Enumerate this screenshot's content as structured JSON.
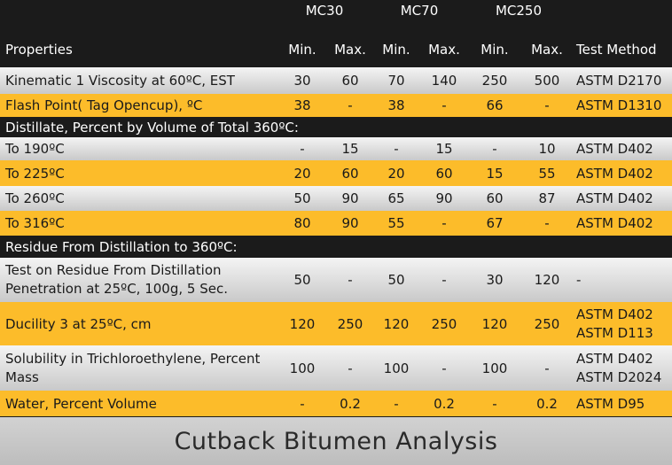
{
  "groups": [
    "MC30",
    "MC70",
    "MC250"
  ],
  "header": [
    "Properties",
    "Min.",
    "Max.",
    "Min.",
    "Max.",
    "Min.",
    "Max.",
    "Test Method"
  ],
  "rows": [
    {
      "style": "gray",
      "label": [
        "Kinematic 1 Viscosity at 60ºC, EST"
      ],
      "values": [
        "30",
        "60",
        "70",
        "140",
        "250",
        "500"
      ],
      "method": [
        "ASTM D2170"
      ]
    },
    {
      "style": "yellow",
      "label": [
        "Flash Point( Tag Opencup), ºC"
      ],
      "values": [
        "38",
        "-",
        "38",
        "-",
        "66",
        "-"
      ],
      "method": [
        "ASTM D1310"
      ]
    },
    {
      "style": "dark",
      "label": [
        "Distillate, Percent by Volume of Total 360ºC:"
      ]
    },
    {
      "style": "gray",
      "label": [
        "To 190ºC"
      ],
      "values": [
        "-",
        "15",
        "-",
        "15",
        "-",
        "10"
      ],
      "method": [
        "ASTM D402"
      ]
    },
    {
      "style": "yellow",
      "label": [
        "To 225ºC"
      ],
      "values": [
        "20",
        "60",
        "20",
        "60",
        "15",
        "55"
      ],
      "method": [
        "ASTM D402"
      ]
    },
    {
      "style": "gray",
      "label": [
        "To 260ºC"
      ],
      "values": [
        "50",
        "90",
        "65",
        "90",
        "60",
        "87"
      ],
      "method": [
        "ASTM D402"
      ]
    },
    {
      "style": "yellow",
      "label": [
        "To 316ºC"
      ],
      "values": [
        "80",
        "90",
        "55",
        "-",
        "67",
        "-"
      ],
      "method": [
        "ASTM D402"
      ]
    },
    {
      "style": "dark",
      "label": [
        "Residue From Distillation to 360ºC:"
      ]
    },
    {
      "style": "gray",
      "label": [
        "Test on Residue From Distillation",
        "Penetration at 25ºC, 100g, 5 Sec."
      ],
      "values": [
        "50",
        "-",
        "50",
        "-",
        "30",
        "120"
      ],
      "method": [
        "-"
      ]
    },
    {
      "style": "yellow",
      "label": [
        "Ducility 3 at 25ºC, cm"
      ],
      "values": [
        "120",
        "250",
        "120",
        "250",
        "120",
        "250"
      ],
      "method": [
        "ASTM D402",
        "ASTM D113"
      ]
    },
    {
      "style": "gray",
      "label": [
        "Solubility in Trichloroethylene, Percent",
        "Mass"
      ],
      "values": [
        "100",
        "-",
        "100",
        "-",
        "100",
        "-"
      ],
      "method": [
        "ASTM D402",
        "ASTM D2024"
      ]
    },
    {
      "style": "yellow",
      "label": [
        "Water, Percent Volume"
      ],
      "values": [
        "-",
        "0.2",
        "-",
        "0.2",
        "-",
        "0.2"
      ],
      "method": [
        "ASTM D95"
      ]
    }
  ],
  "caption": "Cutback Bitumen Analysis"
}
